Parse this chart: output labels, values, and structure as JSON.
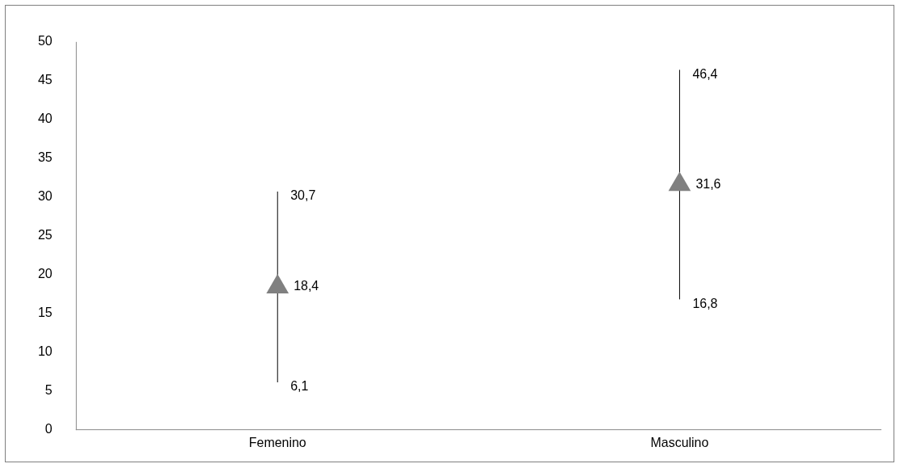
{
  "chart_data": {
    "type": "scatter",
    "categories": [
      "Femenino",
      "Masculino"
    ],
    "series": [
      {
        "color": "#808080",
        "values": [
          18.4,
          31.6
        ],
        "value_labels": [
          "18,4",
          "31,6"
        ],
        "errors": [
          [
            6.1,
            30.7
          ],
          [
            16.8,
            46.4
          ]
        ]
      }
    ],
    "marker": "triangle",
    "legend": false,
    "grid": false,
    "ylim": [
      0,
      50
    ],
    "yticks": [
      0,
      5,
      10,
      15,
      20,
      25,
      30,
      35,
      40,
      45,
      50
    ],
    "annotations": [
      {
        "text": "30,7",
        "x": "Femenino",
        "y": 30.7
      },
      {
        "text": "6,1",
        "x": "Femenino",
        "y": 6.1
      },
      {
        "text": "46,4",
        "x": "Masculino",
        "y": 46.4
      },
      {
        "text": "16,8",
        "x": "Masculino",
        "y": 16.8
      }
    ]
  }
}
